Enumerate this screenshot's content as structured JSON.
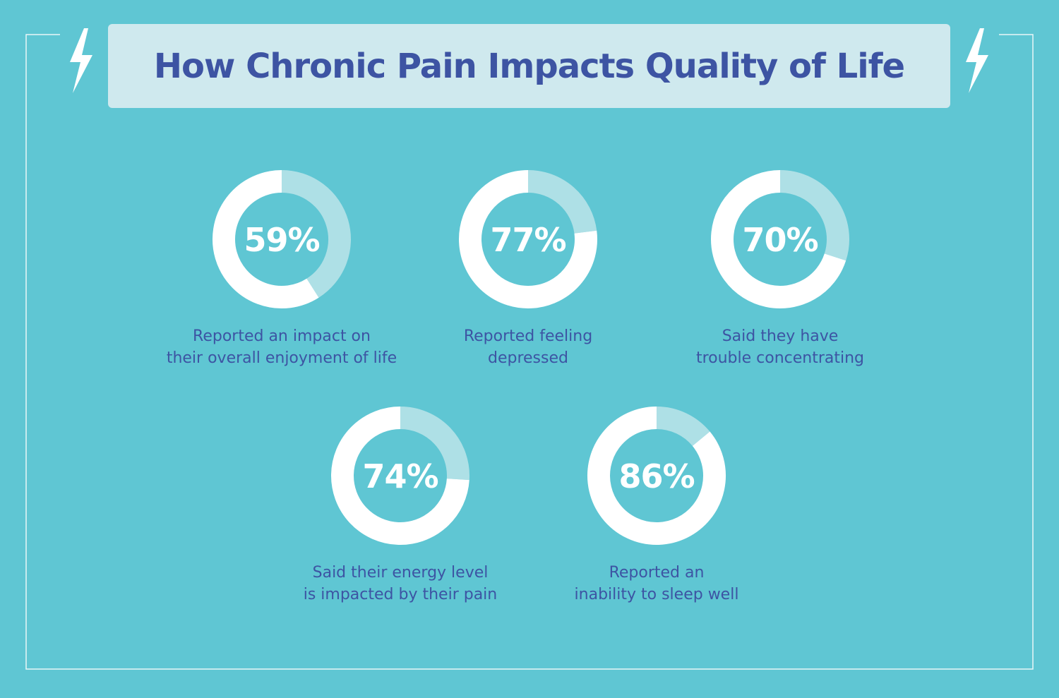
{
  "title": "How Chronic Pain Impacts Quality of Life",
  "colors": {
    "background": "#5fc6d3",
    "title_box": "#cfe9ee",
    "title_text": "#3d54a3",
    "ring_value": "#ffffff",
    "ring_remainder": "#aee0e6",
    "caption_text": "#3d54a3"
  },
  "icons": [
    "lightning-bolt-icon",
    "lightning-bolt-icon"
  ],
  "chart_data": {
    "type": "pie",
    "variant": "donut",
    "items": [
      {
        "value": 59,
        "label": "59%",
        "caption": [
          "Reported an impact on",
          "their overall enjoyment of life"
        ]
      },
      {
        "value": 77,
        "label": "77%",
        "caption": [
          "Reported feeling",
          "depressed"
        ]
      },
      {
        "value": 70,
        "label": "70%",
        "caption": [
          "Said they have",
          "trouble concentrating"
        ]
      },
      {
        "value": 74,
        "label": "74%",
        "caption": [
          "Said their energy level",
          "is impacted by their pain"
        ]
      },
      {
        "value": 86,
        "label": "86%",
        "caption": [
          "Reported an",
          "inability to sleep well"
        ]
      }
    ]
  }
}
